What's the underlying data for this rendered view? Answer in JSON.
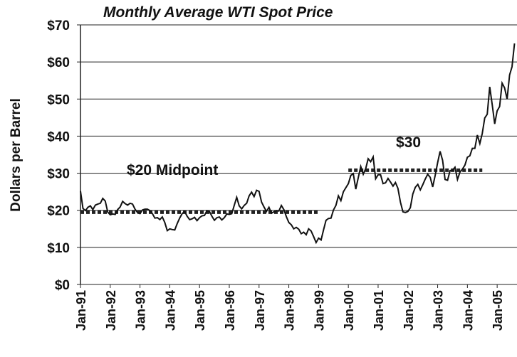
{
  "chart_data": {
    "type": "line",
    "title": "Monthly Average WTI Spot Price",
    "y_label": "Dollars per Barrel",
    "ylim": [
      0,
      70
    ],
    "yticks": [
      {
        "value": 0,
        "label": "$0"
      },
      {
        "value": 10,
        "label": "$10"
      },
      {
        "value": 20,
        "label": "$20"
      },
      {
        "value": 30,
        "label": "$30"
      },
      {
        "value": 40,
        "label": "$40"
      },
      {
        "value": 50,
        "label": "$50"
      },
      {
        "value": 60,
        "label": "$60"
      },
      {
        "value": 70,
        "label": "$70"
      }
    ],
    "grid": true,
    "categories": [
      "Jan-91",
      null,
      null,
      null,
      null,
      null,
      null,
      null,
      null,
      null,
      null,
      null,
      "Jan-92",
      null,
      null,
      null,
      null,
      null,
      null,
      null,
      null,
      null,
      null,
      null,
      "Jan-93",
      null,
      null,
      null,
      null,
      null,
      null,
      null,
      null,
      null,
      null,
      null,
      "Jan-94",
      null,
      null,
      null,
      null,
      null,
      null,
      null,
      null,
      null,
      null,
      null,
      "Jan-95",
      null,
      null,
      null,
      null,
      null,
      null,
      null,
      null,
      null,
      null,
      null,
      "Jan-96",
      null,
      null,
      null,
      null,
      null,
      null,
      null,
      null,
      null,
      null,
      null,
      "Jan-97",
      null,
      null,
      null,
      null,
      null,
      null,
      null,
      null,
      null,
      null,
      null,
      "Jan-98",
      null,
      null,
      null,
      null,
      null,
      null,
      null,
      null,
      null,
      null,
      null,
      "Jan-99",
      null,
      null,
      null,
      null,
      null,
      null,
      null,
      null,
      null,
      null,
      null,
      "Jan-00",
      null,
      null,
      null,
      null,
      null,
      null,
      null,
      null,
      null,
      null,
      null,
      "Jan-01",
      null,
      null,
      null,
      null,
      null,
      null,
      null,
      null,
      null,
      null,
      null,
      "Jan-02",
      null,
      null,
      null,
      null,
      null,
      null,
      null,
      null,
      null,
      null,
      null,
      "Jan-03",
      null,
      null,
      null,
      null,
      null,
      null,
      null,
      null,
      null,
      null,
      null,
      "Jan-04",
      null,
      null,
      null,
      null,
      null,
      null,
      null,
      null,
      null,
      null,
      null,
      "Jan-05",
      null,
      null,
      null,
      null,
      null,
      null,
      null
    ],
    "series": [
      {
        "color": "#111111",
        "values": [
          25.2,
          20.5,
          19.9,
          20.8,
          21.2,
          20.2,
          21.4,
          21.7,
          21.9,
          23.2,
          22.5,
          19.5,
          18.8,
          19.0,
          18.9,
          20.2,
          20.9,
          22.4,
          21.8,
          21.4,
          21.9,
          21.7,
          20.3,
          19.4,
          19.1,
          20.1,
          20.3,
          20.3,
          19.9,
          19.1,
          17.9,
          18.0,
          17.5,
          18.2,
          16.7,
          14.5,
          15.0,
          14.8,
          14.7,
          16.4,
          17.9,
          19.1,
          19.7,
          18.4,
          17.5,
          17.7,
          18.1,
          17.2,
          18.0,
          18.5,
          18.6,
          19.9,
          19.7,
          18.4,
          17.3,
          18.0,
          18.2,
          17.4,
          18.0,
          19.0,
          18.9,
          19.1,
          21.3,
          23.5,
          21.2,
          20.4,
          21.3,
          21.9,
          23.9,
          24.9,
          23.7,
          25.4,
          25.1,
          22.2,
          20.9,
          19.7,
          20.8,
          19.2,
          19.6,
          19.9,
          19.8,
          21.3,
          20.2,
          18.3,
          16.7,
          16.1,
          15.0,
          15.4,
          14.9,
          13.7,
          14.1,
          13.4,
          15.0,
          14.4,
          12.9,
          11.3,
          12.5,
          12.0,
          14.7,
          17.3,
          17.8,
          17.9,
          20.1,
          21.3,
          23.9,
          22.6,
          25.0,
          26.1,
          27.2,
          29.4,
          29.9,
          25.7,
          28.8,
          31.8,
          29.7,
          31.2,
          33.9,
          33.1,
          34.4,
          28.5,
          29.6,
          29.6,
          27.2,
          27.4,
          28.6,
          27.6,
          26.5,
          27.5,
          25.9,
          22.2,
          19.6,
          19.4,
          19.7,
          20.7,
          24.4,
          26.2,
          27.0,
          25.5,
          26.9,
          28.4,
          29.7,
          28.9,
          26.3,
          29.4,
          32.9,
          35.9,
          33.5,
          28.3,
          28.1,
          30.7,
          30.8,
          31.6,
          28.3,
          30.3,
          31.1,
          32.2,
          34.3,
          34.7,
          36.7,
          36.7,
          40.3,
          38.0,
          40.7,
          44.9,
          45.9,
          53.3,
          48.5,
          43.3,
          46.8,
          48.0,
          54.3,
          53.0,
          50.0,
          56.5,
          58.7,
          65.0
        ]
      }
    ],
    "reference_lines": [
      {
        "label": "$20 Midpoint",
        "value": 19.5,
        "x_range": [
          0,
          96
        ]
      },
      {
        "label": "$30",
        "value": 30.8,
        "x_range": [
          108,
          162
        ]
      }
    ]
  }
}
